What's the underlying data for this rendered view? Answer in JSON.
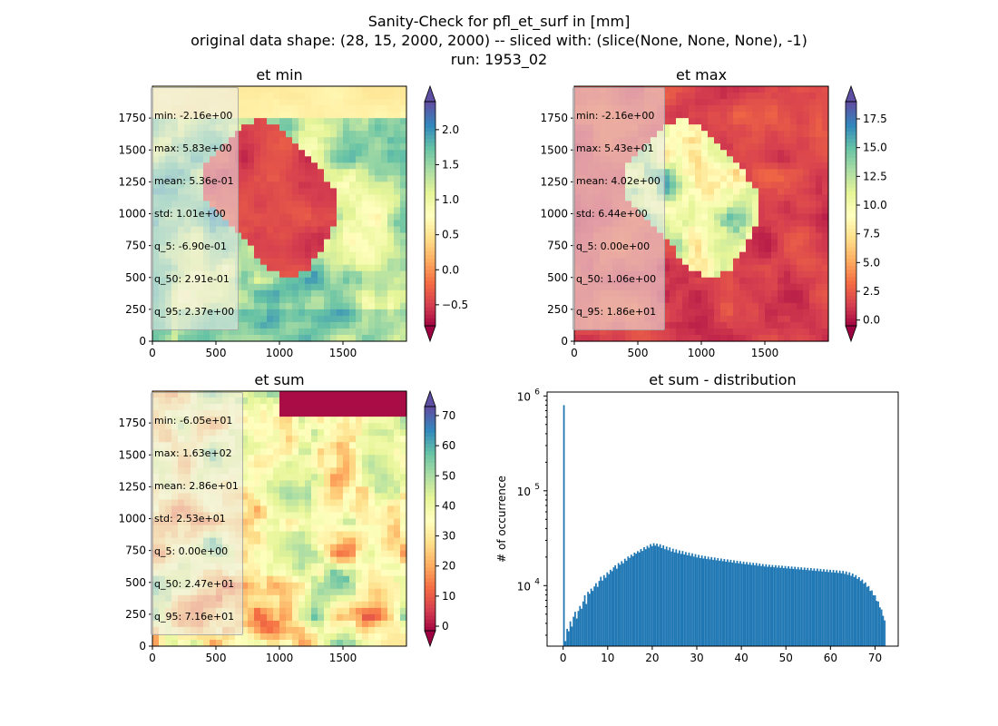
{
  "suptitle": {
    "line1": "Sanity-Check for pfl_et_surf in [mm]",
    "line2": "original data shape: (28, 15, 2000, 2000) -- sliced with: (slice(None, None, None), -1)",
    "line3": "run: 1953_02"
  },
  "chart_data": [
    {
      "type": "heatmap",
      "id": "et-min",
      "title": "et min",
      "xlim": [
        0,
        2000
      ],
      "ylim": [
        0,
        2000
      ],
      "xticks": [
        "0",
        "500",
        "1000",
        "1500"
      ],
      "yticks": [
        "0",
        "250",
        "500",
        "750",
        "1000",
        "1250",
        "1500",
        "1750"
      ],
      "colormap": "Spectral",
      "colorbar": {
        "vmin": -0.8,
        "vmax": 2.4,
        "ticks": [
          -0.5,
          0.0,
          0.5,
          1.0,
          1.5,
          2.0
        ],
        "ticklabels": [
          "−0.5",
          "0.0",
          "0.5",
          "1.0",
          "1.5",
          "2.0"
        ],
        "extend": "both"
      },
      "stats": [
        "min: -2.16e+00",
        "max: 5.83e+00",
        "mean: 5.36e-01",
        "std: 1.01e+00",
        "q_5: -6.90e-01",
        "q_50: 2.91e-01",
        "q_95: 2.37e+00"
      ]
    },
    {
      "type": "heatmap",
      "id": "et-max",
      "title": "et max",
      "xlim": [
        0,
        2000
      ],
      "ylim": [
        0,
        2000
      ],
      "xticks": [
        "0",
        "500",
        "1000",
        "1500"
      ],
      "yticks": [
        "0",
        "250",
        "500",
        "750",
        "1000",
        "1250",
        "1500",
        "1750"
      ],
      "colormap": "Spectral",
      "colorbar": {
        "vmin": -0.5,
        "vmax": 19.0,
        "ticks": [
          0.0,
          2.5,
          5.0,
          7.5,
          10.0,
          12.5,
          15.0,
          17.5
        ],
        "ticklabels": [
          "0.0",
          "2.5",
          "5.0",
          "7.5",
          "10.0",
          "12.5",
          "15.0",
          "17.5"
        ],
        "extend": "both"
      },
      "stats": [
        "min: -2.16e+00",
        "max: 5.43e+01",
        "mean: 4.02e+00",
        "std: 6.44e+00",
        "q_5: 0.00e+00",
        "q_50: 1.06e+00",
        "q_95: 1.86e+01"
      ]
    },
    {
      "type": "heatmap",
      "id": "et-sum",
      "title": "et sum",
      "xlim": [
        0,
        2000
      ],
      "ylim": [
        0,
        2000
      ],
      "xticks": [
        "0",
        "500",
        "1000",
        "1500"
      ],
      "yticks": [
        "0",
        "250",
        "500",
        "750",
        "1000",
        "1250",
        "1500",
        "1750"
      ],
      "colormap": "Spectral",
      "colorbar": {
        "vmin": -1.5,
        "vmax": 73.0,
        "ticks": [
          0,
          10,
          20,
          30,
          40,
          50,
          60,
          70
        ],
        "ticklabels": [
          "0",
          "10",
          "20",
          "30",
          "40",
          "50",
          "60",
          "70"
        ],
        "extend": "both"
      },
      "stats": [
        "min: -6.05e+01",
        "max: 1.63e+02",
        "mean: 2.86e+01",
        "std: 2.53e+01",
        "q_5: 0.00e+00",
        "q_50: 2.47e+01",
        "q_95: 7.16e+01"
      ]
    },
    {
      "type": "bar",
      "id": "et-sum-distribution",
      "title": "et sum - distribution",
      "ylabel": "# of occurrence",
      "yscale": "log",
      "xlim": [
        -3.6,
        75.2
      ],
      "ylim": [
        2300,
        1100000
      ],
      "xticks": [
        0,
        10,
        20,
        30,
        40,
        50,
        60,
        70
      ],
      "yticks": [
        10000,
        100000,
        1000000
      ],
      "ytick_bases": [
        "10",
        "10",
        "10"
      ],
      "ytick_exps": [
        "4",
        "5",
        "6"
      ],
      "color": "#1f77b4",
      "bin_start": 0,
      "bin_width": 0.36,
      "counts": [
        800000,
        2600,
        3500,
        3300,
        4200,
        3700,
        4700,
        5300,
        4500,
        5400,
        6100,
        5700,
        6800,
        7900,
        6400,
        8600,
        8200,
        9300,
        8800,
        9800,
        10600,
        9700,
        11200,
        12400,
        11300,
        12900,
        12100,
        13800,
        13200,
        14700,
        14200,
        15600,
        16400,
        15100,
        17300,
        16600,
        18100,
        17200,
        19200,
        18300,
        20300,
        19600,
        21200,
        20400,
        22300,
        21700,
        23100,
        22400,
        24300,
        23200,
        25400,
        24200,
        26300,
        25100,
        27400,
        26100,
        28000,
        26400,
        27700,
        25800,
        27300,
        24900,
        26600,
        24200,
        25800,
        23600,
        25300,
        22900,
        24500,
        22400,
        24100,
        22000,
        23500,
        21600,
        23200,
        21300,
        22600,
        20900,
        22300,
        20600,
        21900,
        20200,
        21500,
        19800,
        21100,
        19500,
        20800,
        19300,
        20500,
        19100,
        20200,
        18900,
        20000,
        18700,
        19800,
        18500,
        19500,
        18300,
        19300,
        18100,
        19100,
        17900,
        18900,
        17700,
        18700,
        17500,
        18500,
        17300,
        18300,
        17200,
        18100,
        17000,
        17900,
        16800,
        17700,
        16700,
        17600,
        16500,
        17400,
        16400,
        17300,
        16200,
        17100,
        16100,
        16900,
        15900,
        16800,
        15800,
        16600,
        15700,
        16500,
        15600,
        16400,
        15500,
        16300,
        15400,
        16200,
        15300,
        16100,
        15200,
        16000,
        15100,
        15900,
        15000,
        15800,
        14900,
        15700,
        14800,
        15600,
        14700,
        15500,
        14600,
        15400,
        14500,
        15300,
        14400,
        15200,
        14300,
        15100,
        14200,
        15000,
        14100,
        14900,
        14000,
        14800,
        13900,
        14700,
        13800,
        14600,
        13700,
        14500,
        13600,
        14400,
        13500,
        14300,
        13300,
        14100,
        13000,
        13800,
        12700,
        13400,
        12300,
        12900,
        11800,
        12300,
        11200,
        11600,
        10500,
        10800,
        9700,
        9900,
        8800,
        8900,
        7900,
        7900,
        6900,
        6800,
        5900,
        5600,
        4800,
        4300
      ]
    }
  ]
}
